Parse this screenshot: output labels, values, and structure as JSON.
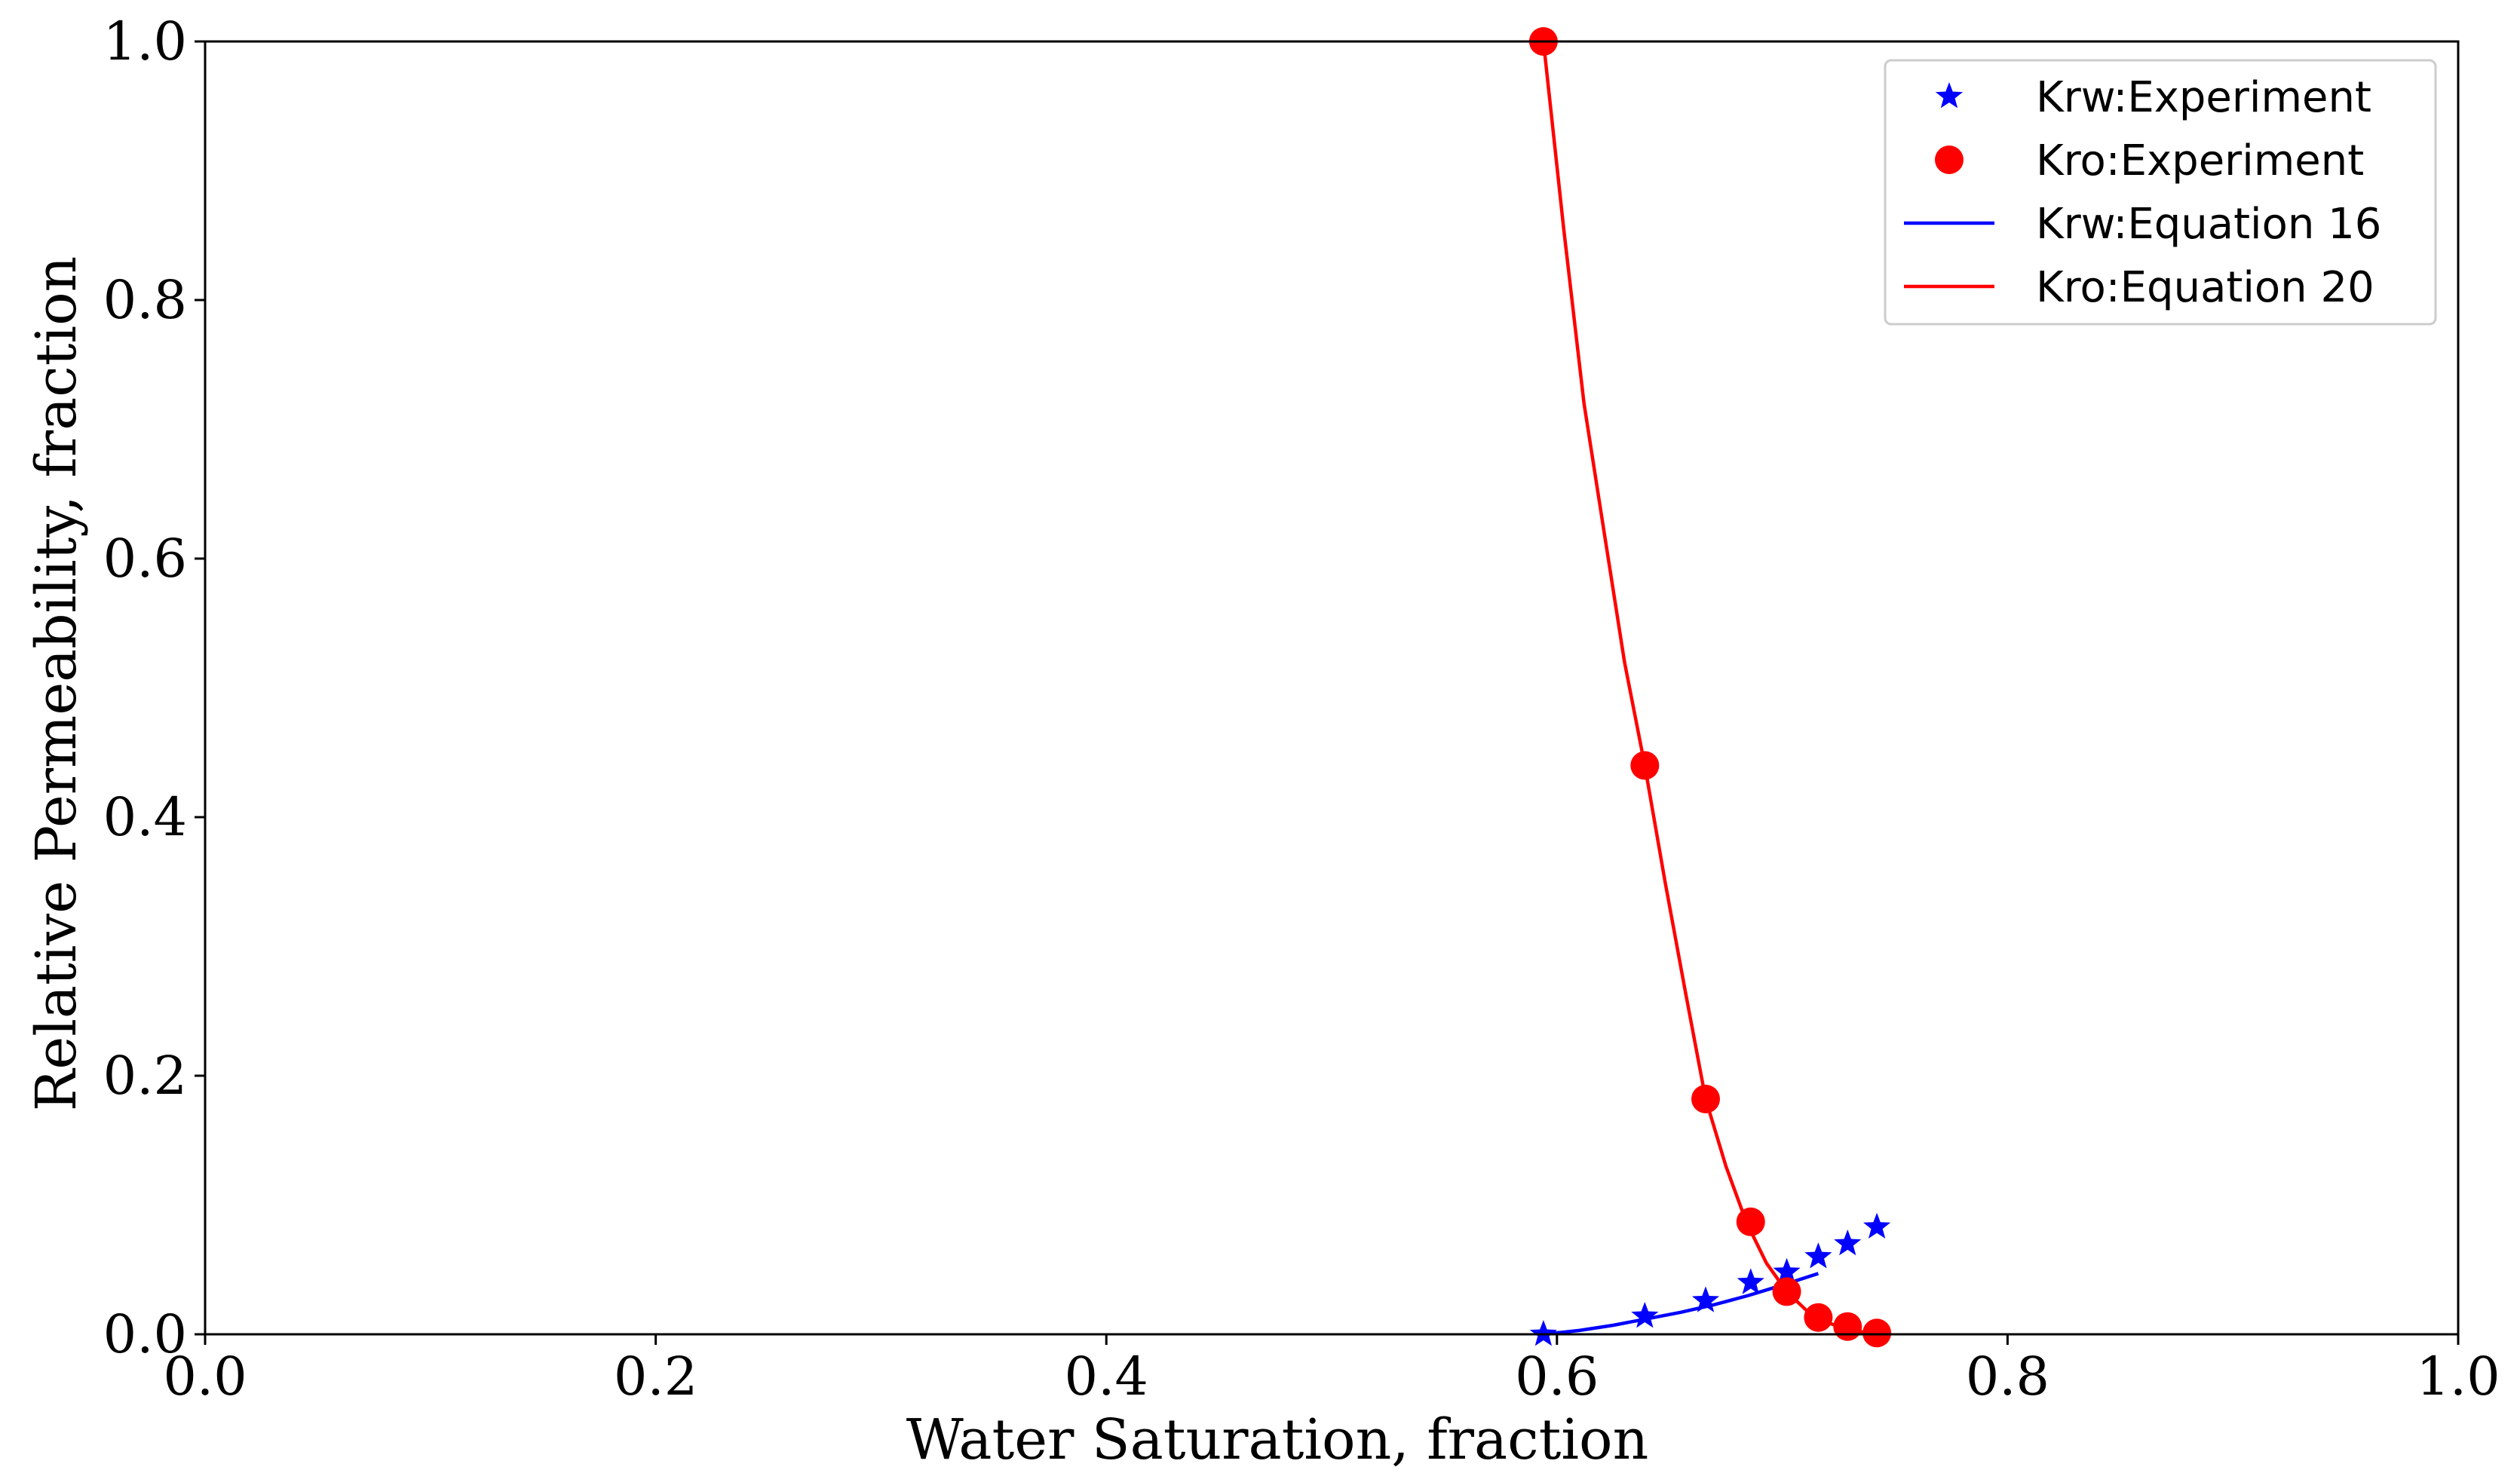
{
  "chart_data": {
    "type": "line",
    "title": "",
    "xlabel": "Water Saturation, fraction",
    "ylabel": "Relative Permeability, fraction",
    "xlim": [
      0.0,
      1.0
    ],
    "ylim": [
      0.0,
      1.0
    ],
    "xticks": [
      "0.0",
      "0.2",
      "0.4",
      "0.6",
      "0.8",
      "1.0"
    ],
    "yticks": [
      "0.0",
      "0.2",
      "0.4",
      "0.6",
      "0.8",
      "1.0"
    ],
    "grid": false,
    "legend_position": "top-right",
    "colors": {
      "krw": "#0000ff",
      "kro": "#ff0000",
      "axis": "#000000"
    },
    "series": [
      {
        "name": "Krw:Experiment",
        "kind": "marker-star",
        "x": [
          0.594,
          0.639,
          0.666,
          0.686,
          0.702,
          0.716,
          0.729,
          0.742
        ],
        "y": [
          0.0,
          0.014,
          0.026,
          0.04,
          0.048,
          0.06,
          0.07,
          0.083
        ]
      },
      {
        "name": "Kro:Experiment",
        "kind": "marker-circle",
        "x": [
          0.594,
          0.639,
          0.666,
          0.686,
          0.702,
          0.716,
          0.729,
          0.742
        ],
        "y": [
          1.0,
          0.44,
          0.182,
          0.087,
          0.033,
          0.013,
          0.006,
          0.001
        ]
      },
      {
        "name": "Krw:Equation 16",
        "kind": "line",
        "x": [
          0.594,
          0.61,
          0.625,
          0.64,
          0.655,
          0.67,
          0.685,
          0.7,
          0.716
        ],
        "y": [
          0.0,
          0.003,
          0.007,
          0.012,
          0.017,
          0.023,
          0.03,
          0.038,
          0.047
        ]
      },
      {
        "name": "Kro:Equation 20",
        "kind": "line",
        "x": [
          0.594,
          0.603,
          0.612,
          0.621,
          0.63,
          0.639,
          0.648,
          0.657,
          0.666,
          0.675,
          0.684,
          0.693,
          0.702,
          0.711,
          0.72,
          0.729,
          0.738,
          0.742
        ],
        "y": [
          1.0,
          0.855,
          0.72,
          0.62,
          0.52,
          0.44,
          0.35,
          0.265,
          0.182,
          0.13,
          0.087,
          0.055,
          0.033,
          0.018,
          0.009,
          0.004,
          0.001,
          0.0
        ]
      }
    ]
  }
}
